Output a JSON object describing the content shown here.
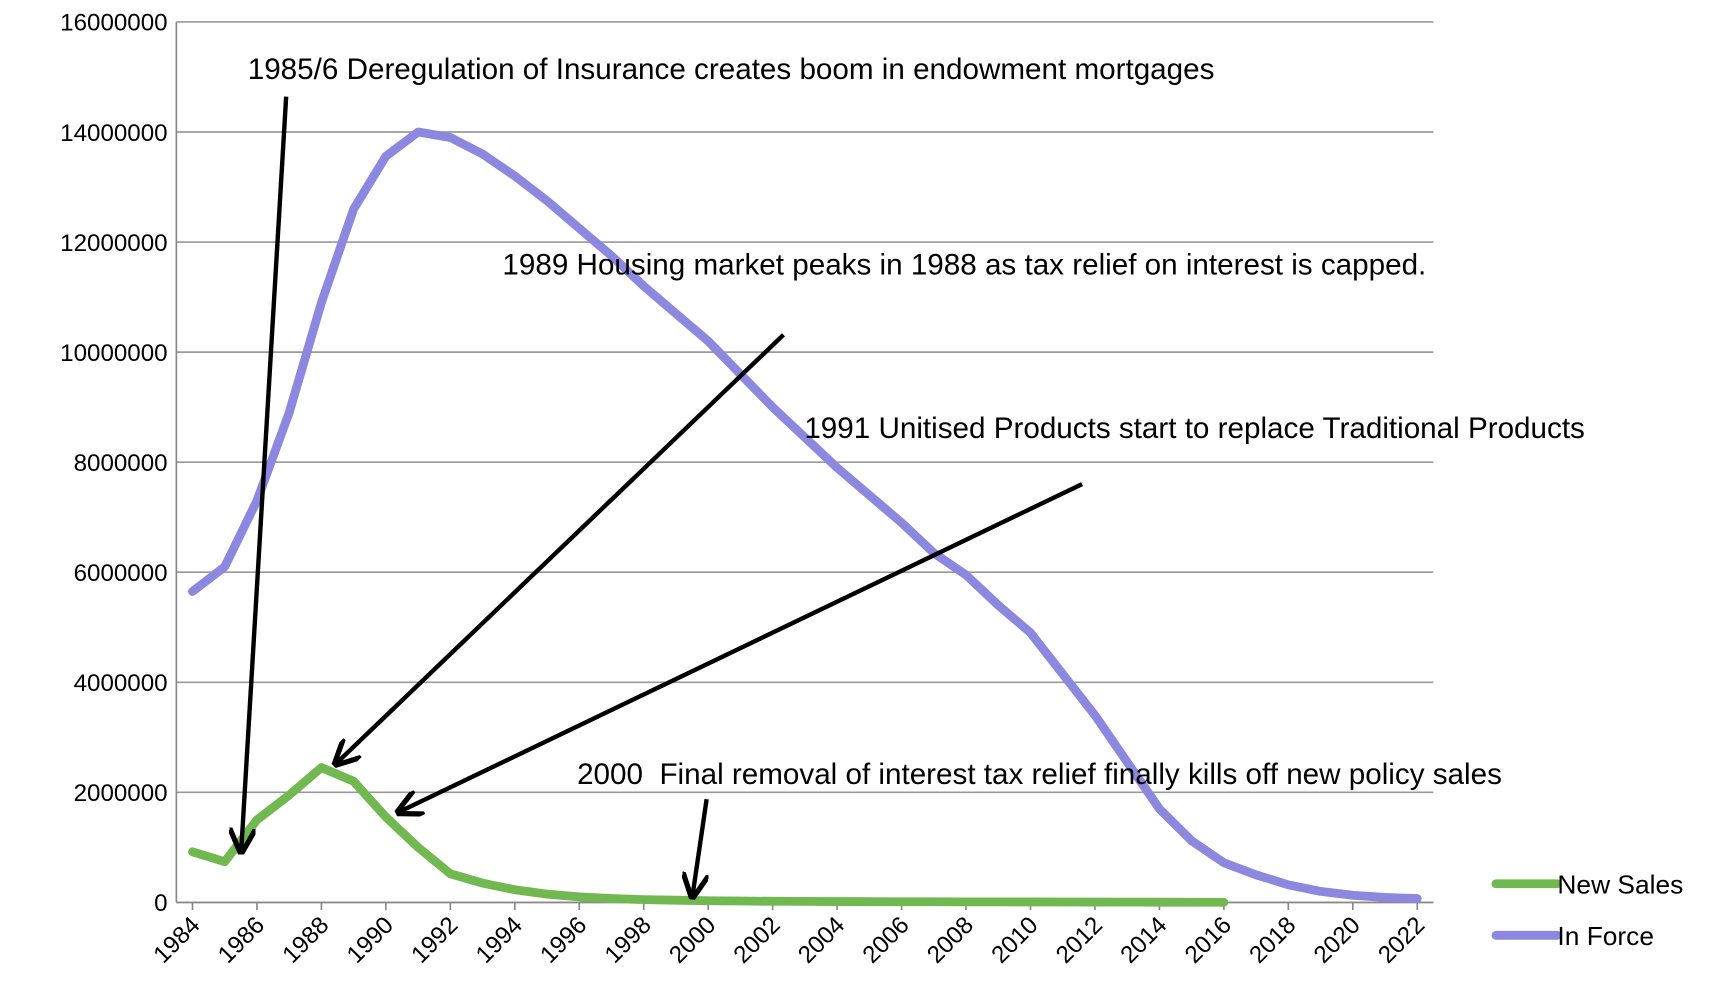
{
  "chart_data": {
    "type": "line",
    "x": [
      1984,
      1985,
      1986,
      1987,
      1988,
      1989,
      1990,
      1991,
      1992,
      1993,
      1994,
      1995,
      1996,
      1997,
      1998,
      1999,
      2000,
      2001,
      2002,
      2003,
      2004,
      2005,
      2006,
      2007,
      2008,
      2009,
      2010,
      2011,
      2012,
      2013,
      2014,
      2015,
      2016,
      2017,
      2018,
      2019,
      2020,
      2021,
      2022
    ],
    "xlim": [
      1983.5,
      2022.5
    ],
    "xticks": [
      1984,
      1986,
      1988,
      1990,
      1992,
      1994,
      1996,
      1998,
      2000,
      2002,
      2004,
      2006,
      2008,
      2010,
      2012,
      2014,
      2016,
      2018,
      2020,
      2022
    ],
    "ylim": [
      0,
      16000000
    ],
    "yticks": [
      0,
      2000000,
      4000000,
      6000000,
      8000000,
      10000000,
      12000000,
      14000000,
      16000000
    ],
    "grid": true,
    "legend": "right",
    "series": [
      {
        "name": "New Sales",
        "color": "#70b84f",
        "values": [
          920000,
          740000,
          1500000,
          1950000,
          2450000,
          2200000,
          1550000,
          1000000,
          520000,
          350000,
          230000,
          150000,
          100000,
          70000,
          50000,
          40000,
          30000,
          25000,
          20000,
          18000,
          15000,
          13000,
          12000,
          11000,
          10000,
          9000,
          8000,
          7000,
          6000,
          5000,
          4000,
          3000,
          2000,
          null,
          null,
          null,
          null,
          null,
          null
        ]
      },
      {
        "name": "In Force",
        "color": "#8c88e0",
        "values": [
          5650000,
          6100000,
          7300000,
          8900000,
          10900000,
          12600000,
          13560000,
          14000000,
          13900000,
          13600000,
          13200000,
          12750000,
          12250000,
          11750000,
          11200000,
          10700000,
          10200000,
          9600000,
          9000000,
          8450000,
          7900000,
          7400000,
          6900000,
          6350000,
          5950000,
          5400000,
          4900000,
          4150000,
          3400000,
          2550000,
          1700000,
          1120000,
          720000,
          500000,
          320000,
          200000,
          130000,
          90000,
          70000
        ]
      }
    ],
    "annotations": [
      {
        "text": "1985/6 Deregulation of Insurance creates boom in endowment mortgages"
      },
      {
        "text": "1989 Housing market peaks in 1988 as tax relief on interest is capped."
      },
      {
        "text": "1991 Unitised Products start to replace Traditional Products"
      },
      {
        "text": "2000  Final removal of interest tax relief finally kills off new policy sales"
      }
    ]
  }
}
